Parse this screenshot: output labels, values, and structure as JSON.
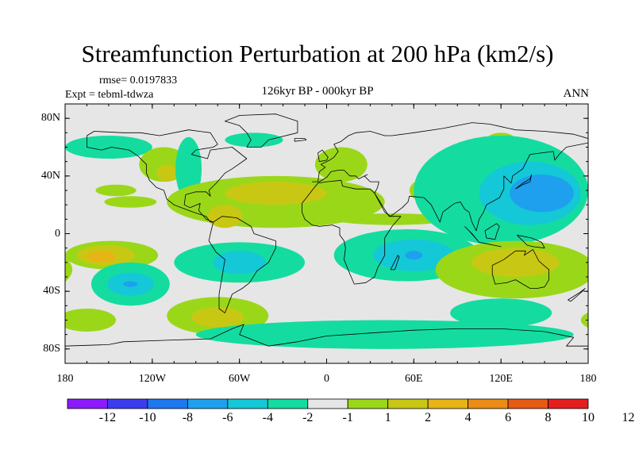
{
  "title": "Streamfunction Perturbation at 200 hPa (km2/s)",
  "rmse": "rmse= 0.0197833",
  "expt": "Expt = tebml-tdwza",
  "period": "126kyr BP - 000kyr BP",
  "season": "ANN",
  "lat_ticks": [
    {
      "label": "80N",
      "lat": 80
    },
    {
      "label": "40N",
      "lat": 40
    },
    {
      "label": "0",
      "lat": 0
    },
    {
      "label": "40S",
      "lat": -40
    },
    {
      "label": "80S",
      "lat": -80
    }
  ],
  "lon_ticks": [
    {
      "label": "180",
      "lon": -180
    },
    {
      "label": "120W",
      "lon": -120
    },
    {
      "label": "60W",
      "lon": -60
    },
    {
      "label": "0",
      "lon": 0
    },
    {
      "label": "60E",
      "lon": 60
    },
    {
      "label": "120E",
      "lon": 120
    },
    {
      "label": "180",
      "lon": 180
    }
  ],
  "colorbar": {
    "colors": [
      "#8c1aff",
      "#3c3cef",
      "#1e78ef",
      "#1ea0ef",
      "#14c8d7",
      "#14dca0",
      "#e6e6e6",
      "#9bd719",
      "#c8c814",
      "#e6b414",
      "#eb8c14",
      "#e65a14",
      "#e61e1e"
    ],
    "labels": [
      "-12",
      "-10",
      "-8",
      "-6",
      "-4",
      "-2",
      "-1",
      "1",
      "2",
      "4",
      "6",
      "8",
      "10",
      "12"
    ]
  },
  "fields": [
    {
      "lon": -150,
      "lat": 60,
      "rlon": 30,
      "rlat": 8,
      "color": "#14dca0"
    },
    {
      "lon": -145,
      "lat": 30,
      "rlon": 14,
      "rlat": 4,
      "color": "#9bd719"
    },
    {
      "lon": -135,
      "lat": 22,
      "rlon": 18,
      "rlat": 4,
      "color": "#9bd719"
    },
    {
      "lon": -112,
      "lat": 48,
      "rlon": 17,
      "rlat": 12,
      "color": "#9bd719"
    },
    {
      "lon": -110,
      "lat": 42,
      "rlon": 7,
      "rlat": 6,
      "color": "#c8c814"
    },
    {
      "lon": -95,
      "lat": 45,
      "rlon": 9,
      "rlat": 22,
      "color": "#14dca0"
    },
    {
      "lon": -35,
      "lat": 22,
      "rlon": 75,
      "rlat": 18,
      "color": "#9bd719"
    },
    {
      "lon": -35,
      "lat": 28,
      "rlon": 35,
      "rlat": 8,
      "color": "#c8c814"
    },
    {
      "lon": -70,
      "lat": 12,
      "rlon": 12,
      "rlat": 8,
      "color": "#c8c814"
    },
    {
      "lon": -50,
      "lat": 65,
      "rlon": 20,
      "rlat": 5,
      "color": "#14dca0"
    },
    {
      "lon": 10,
      "lat": 48,
      "rlon": 18,
      "rlat": 12,
      "color": "#9bd719"
    },
    {
      "lon": 45,
      "lat": 10,
      "rlon": 40,
      "rlat": 4,
      "color": "#9bd719"
    },
    {
      "lon": 85,
      "lat": 30,
      "rlon": 28,
      "rlat": 12,
      "color": "#9bd719"
    },
    {
      "lon": 85,
      "lat": 30,
      "rlon": 12,
      "rlat": 5,
      "color": "#c8c814"
    },
    {
      "lon": 120,
      "lat": 65,
      "rlon": 10,
      "rlat": 5,
      "color": "#9bd719"
    },
    {
      "lon": 120,
      "lat": 30,
      "rlon": 60,
      "rlat": 38,
      "color": "#14dca0"
    },
    {
      "lon": 140,
      "lat": 28,
      "rlon": 35,
      "rlat": 22,
      "color": "#14c8d7"
    },
    {
      "lon": 148,
      "lat": 28,
      "rlon": 22,
      "rlat": 13,
      "color": "#1ea0ef"
    },
    {
      "lon": -148,
      "lat": -15,
      "rlon": 32,
      "rlat": 10,
      "color": "#9bd719"
    },
    {
      "lon": -152,
      "lat": -15,
      "rlon": 20,
      "rlat": 7,
      "color": "#c8c814"
    },
    {
      "lon": -155,
      "lat": -16,
      "rlon": 10,
      "rlat": 4,
      "color": "#e6b414"
    },
    {
      "lon": -135,
      "lat": -35,
      "rlon": 27,
      "rlat": 15,
      "color": "#14dca0"
    },
    {
      "lon": -135,
      "lat": -35,
      "rlon": 16,
      "rlat": 8,
      "color": "#14c8d7"
    },
    {
      "lon": -135,
      "lat": -35,
      "rlon": 5,
      "rlat": 2,
      "color": "#1ea0ef"
    },
    {
      "lon": -165,
      "lat": -60,
      "rlon": 20,
      "rlat": 8,
      "color": "#9bd719"
    },
    {
      "lon": -75,
      "lat": -57,
      "rlon": 35,
      "rlat": 13,
      "color": "#9bd719"
    },
    {
      "lon": -75,
      "lat": -58,
      "rlon": 18,
      "rlat": 7,
      "color": "#c8c814"
    },
    {
      "lon": -60,
      "lat": -20,
      "rlon": 45,
      "rlat": 14,
      "color": "#14dca0"
    },
    {
      "lon": -60,
      "lat": -20,
      "rlon": 18,
      "rlat": 8,
      "color": "#14c8d7"
    },
    {
      "lon": 55,
      "lat": -15,
      "rlon": 50,
      "rlat": 18,
      "color": "#14dca0"
    },
    {
      "lon": 60,
      "lat": -15,
      "rlon": 28,
      "rlat": 11,
      "color": "#14c8d7"
    },
    {
      "lon": 60,
      "lat": -15,
      "rlon": 6,
      "rlat": 3,
      "color": "#1ea0ef"
    },
    {
      "lon": 40,
      "lat": -70,
      "rlon": 130,
      "rlat": 10,
      "color": "#14dca0"
    },
    {
      "lon": 130,
      "lat": -25,
      "rlon": 55,
      "rlat": 20,
      "color": "#9bd719"
    },
    {
      "lon": 130,
      "lat": -20,
      "rlon": 30,
      "rlat": 10,
      "color": "#c8c814"
    },
    {
      "lon": 120,
      "lat": -55,
      "rlon": 35,
      "rlat": 10,
      "color": "#14dca0"
    }
  ],
  "coastlines": [
    [
      [
        -165,
        68
      ],
      [
        -160,
        71
      ],
      [
        -140,
        70
      ],
      [
        -128,
        70
      ],
      [
        -115,
        68
      ],
      [
        -95,
        72
      ],
      [
        -80,
        70
      ],
      [
        -75,
        62
      ],
      [
        -78,
        60
      ],
      [
        -90,
        58
      ],
      [
        -93,
        55
      ],
      [
        -82,
        52
      ],
      [
        -80,
        58
      ],
      [
        -65,
        60
      ],
      [
        -55,
        52
      ],
      [
        -65,
        45
      ],
      [
        -70,
        42
      ],
      [
        -76,
        35
      ],
      [
        -81,
        30
      ],
      [
        -80,
        26
      ],
      [
        -83,
        29
      ],
      [
        -90,
        29
      ],
      [
        -97,
        27
      ],
      [
        -98,
        20
      ],
      [
        -94,
        18
      ],
      [
        -87,
        21
      ],
      [
        -88,
        16
      ],
      [
        -83,
        10
      ],
      [
        -78,
        8
      ],
      [
        -80,
        8
      ],
      [
        -83,
        12
      ],
      [
        -86,
        13
      ],
      [
        -92,
        15
      ],
      [
        -105,
        20
      ],
      [
        -110,
        24
      ],
      [
        -112,
        30
      ],
      [
        -117,
        32
      ],
      [
        -122,
        37
      ],
      [
        -124,
        42
      ],
      [
        -124,
        48
      ],
      [
        -130,
        54
      ],
      [
        -136,
        58
      ],
      [
        -148,
        60
      ],
      [
        -155,
        58
      ],
      [
        -165,
        60
      ],
      [
        -165,
        68
      ]
    ],
    [
      [
        -78,
        8
      ],
      [
        -72,
        12
      ],
      [
        -62,
        11
      ],
      [
        -52,
        5
      ],
      [
        -50,
        0
      ],
      [
        -44,
        -2
      ],
      [
        -35,
        -5
      ],
      [
        -35,
        -10
      ],
      [
        -40,
        -20
      ],
      [
        -48,
        -26
      ],
      [
        -53,
        -34
      ],
      [
        -58,
        -38
      ],
      [
        -65,
        -42
      ],
      [
        -68,
        -50
      ],
      [
        -70,
        -55
      ],
      [
        -74,
        -52
      ],
      [
        -74,
        -42
      ],
      [
        -72,
        -30
      ],
      [
        -70,
        -18
      ],
      [
        -76,
        -13
      ],
      [
        -81,
        -5
      ],
      [
        -80,
        0
      ],
      [
        -78,
        8
      ]
    ],
    [
      [
        -55,
        60
      ],
      [
        -45,
        60
      ],
      [
        -40,
        65
      ],
      [
        -20,
        70
      ],
      [
        -20,
        78
      ],
      [
        -35,
        83
      ],
      [
        -60,
        82
      ],
      [
        -70,
        78
      ],
      [
        -60,
        75
      ],
      [
        -55,
        70
      ],
      [
        -52,
        65
      ],
      [
        -55,
        60
      ]
    ],
    [
      [
        -10,
        36
      ],
      [
        -6,
        36
      ],
      [
        -5,
        43
      ],
      [
        -1,
        46
      ],
      [
        -4,
        48
      ],
      [
        2,
        51
      ],
      [
        5,
        53
      ],
      [
        8,
        57
      ],
      [
        5,
        62
      ],
      [
        10,
        64
      ],
      [
        15,
        68
      ],
      [
        20,
        70
      ],
      [
        30,
        71
      ],
      [
        40,
        68
      ],
      [
        45,
        68
      ],
      [
        60,
        70
      ],
      [
        80,
        73
      ],
      [
        100,
        77
      ],
      [
        112,
        76
      ],
      [
        130,
        72
      ],
      [
        150,
        71
      ],
      [
        160,
        70
      ],
      [
        170,
        69
      ],
      [
        180,
        66
      ],
      [
        180,
        63
      ],
      [
        165,
        60
      ],
      [
        160,
        55
      ],
      [
        157,
        51
      ],
      [
        156,
        57
      ],
      [
        140,
        55
      ],
      [
        135,
        45
      ],
      [
        128,
        40
      ],
      [
        127,
        35
      ],
      [
        122,
        40
      ],
      [
        122,
        31
      ],
      [
        119,
        25
      ],
      [
        110,
        20
      ],
      [
        108,
        15
      ],
      [
        105,
        10
      ],
      [
        103,
        2
      ],
      [
        100,
        8
      ],
      [
        98,
        15
      ],
      [
        95,
        17
      ],
      [
        92,
        22
      ],
      [
        88,
        21
      ],
      [
        80,
        15
      ],
      [
        78,
        8
      ],
      [
        72,
        20
      ],
      [
        67,
        25
      ],
      [
        57,
        26
      ],
      [
        56,
        22
      ],
      [
        52,
        18
      ],
      [
        44,
        12
      ],
      [
        40,
        15
      ],
      [
        33,
        28
      ],
      [
        35,
        32
      ],
      [
        36,
        36
      ],
      [
        30,
        36
      ],
      [
        26,
        40
      ],
      [
        28,
        41
      ],
      [
        22,
        38
      ],
      [
        20,
        40
      ],
      [
        16,
        40
      ],
      [
        12,
        44
      ],
      [
        8,
        44
      ],
      [
        3,
        43
      ],
      [
        0,
        39
      ],
      [
        -5,
        36
      ],
      [
        -10,
        36
      ]
    ],
    [
      [
        -17,
        15
      ],
      [
        -17,
        21
      ],
      [
        -10,
        30
      ],
      [
        -6,
        35
      ],
      [
        0,
        36
      ],
      [
        10,
        37
      ],
      [
        11,
        33
      ],
      [
        20,
        31
      ],
      [
        30,
        31
      ],
      [
        33,
        28
      ],
      [
        38,
        20
      ],
      [
        43,
        12
      ],
      [
        51,
        12
      ],
      [
        45,
        5
      ],
      [
        40,
        -3
      ],
      [
        40,
        -15
      ],
      [
        35,
        -24
      ],
      [
        33,
        -30
      ],
      [
        27,
        -34
      ],
      [
        19,
        -35
      ],
      [
        16,
        -28
      ],
      [
        12,
        -18
      ],
      [
        13,
        -10
      ],
      [
        12,
        -5
      ],
      [
        9,
        -1
      ],
      [
        9,
        4
      ],
      [
        4,
        6
      ],
      [
        -5,
        5
      ],
      [
        -10,
        6
      ],
      [
        -15,
        10
      ],
      [
        -17,
        15
      ]
    ],
    [
      [
        44,
        -25
      ],
      [
        49,
        -15
      ],
      [
        50,
        -16
      ],
      [
        47,
        -25
      ],
      [
        44,
        -25
      ]
    ],
    [
      [
        114,
        -22
      ],
      [
        122,
        -18
      ],
      [
        130,
        -12
      ],
      [
        137,
        -12
      ],
      [
        136,
        -15
      ],
      [
        142,
        -11
      ],
      [
        146,
        -19
      ],
      [
        153,
        -25
      ],
      [
        153,
        -32
      ],
      [
        150,
        -37
      ],
      [
        145,
        -38
      ],
      [
        140,
        -38
      ],
      [
        135,
        -35
      ],
      [
        130,
        -32
      ],
      [
        124,
        -34
      ],
      [
        116,
        -35
      ],
      [
        114,
        -28
      ],
      [
        114,
        -22
      ]
    ],
    [
      [
        131,
        -1
      ],
      [
        141,
        -3
      ],
      [
        148,
        -6
      ],
      [
        150,
        -10
      ],
      [
        142,
        -9
      ],
      [
        138,
        -8
      ],
      [
        131,
        -1
      ]
    ],
    [
      [
        95,
        5
      ],
      [
        100,
        0
      ],
      [
        105,
        -6
      ],
      [
        98,
        2
      ],
      [
        95,
        5
      ]
    ],
    [
      [
        105,
        -6
      ],
      [
        115,
        -8
      ],
      [
        120,
        -9
      ],
      [
        110,
        -7
      ],
      [
        105,
        -6
      ]
    ],
    [
      [
        109,
        2
      ],
      [
        117,
        7
      ],
      [
        119,
        5
      ],
      [
        117,
        0
      ],
      [
        116,
        -4
      ],
      [
        110,
        -3
      ],
      [
        109,
        2
      ]
    ],
    [
      [
        130,
        31
      ],
      [
        135,
        34
      ],
      [
        140,
        36
      ],
      [
        141,
        41
      ],
      [
        140,
        38
      ],
      [
        135,
        35
      ],
      [
        130,
        31
      ]
    ],
    [
      [
        -5,
        50
      ],
      [
        0,
        51
      ],
      [
        1,
        53
      ],
      [
        -3,
        58
      ],
      [
        -6,
        56
      ],
      [
        -5,
        50
      ]
    ],
    [
      [
        -22,
        64
      ],
      [
        -14,
        65
      ],
      [
        -15,
        66
      ],
      [
        -22,
        66
      ],
      [
        -22,
        64
      ]
    ],
    [
      [
        166,
        -46
      ],
      [
        174,
        -41
      ],
      [
        178,
        -38
      ],
      [
        175,
        -41
      ],
      [
        168,
        -47
      ],
      [
        166,
        -46
      ]
    ],
    [
      [
        -180,
        -78
      ],
      [
        -150,
        -77
      ],
      [
        -140,
        -75
      ],
      [
        -110,
        -74
      ],
      [
        -80,
        -73
      ],
      [
        -65,
        -66
      ],
      [
        -57,
        -63
      ],
      [
        -60,
        -70
      ],
      [
        -40,
        -78
      ],
      [
        -20,
        -75
      ],
      [
        0,
        -71
      ],
      [
        30,
        -69
      ],
      [
        60,
        -67
      ],
      [
        90,
        -66
      ],
      [
        120,
        -66
      ],
      [
        150,
        -68
      ],
      [
        170,
        -72
      ],
      [
        165,
        -78
      ],
      [
        180,
        -78
      ]
    ]
  ]
}
